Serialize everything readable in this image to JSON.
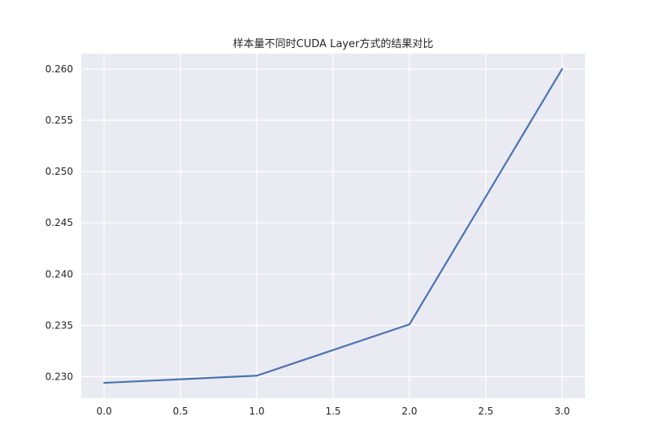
{
  "chart_data": {
    "type": "line",
    "title": "样本量不同时CUDA Layer方式的结果对比",
    "xlabel": "",
    "ylabel": "",
    "x": [
      0,
      1,
      2,
      3
    ],
    "series": [
      {
        "values": [
          0.2294,
          0.2301,
          0.2351,
          0.26
        ]
      }
    ],
    "xticks": [
      "0.0",
      "0.5",
      "1.0",
      "1.5",
      "2.0",
      "2.5",
      "3.0"
    ],
    "xtick_values": [
      0,
      0.5,
      1,
      1.5,
      2,
      2.5,
      3
    ],
    "yticks": [
      "0.230",
      "0.235",
      "0.240",
      "0.245",
      "0.250",
      "0.255",
      "0.260"
    ],
    "ytick_values": [
      0.23,
      0.235,
      0.24,
      0.245,
      0.25,
      0.255,
      0.26
    ],
    "xlim": [
      -0.15,
      3.15
    ],
    "ylim": [
      0.2279,
      0.2615
    ],
    "grid": true,
    "legend": "none"
  },
  "colors": {
    "plot_background": "#EAEAF2",
    "grid": "#FFFFFF",
    "line": "#4C72B0",
    "text": "#262626"
  }
}
